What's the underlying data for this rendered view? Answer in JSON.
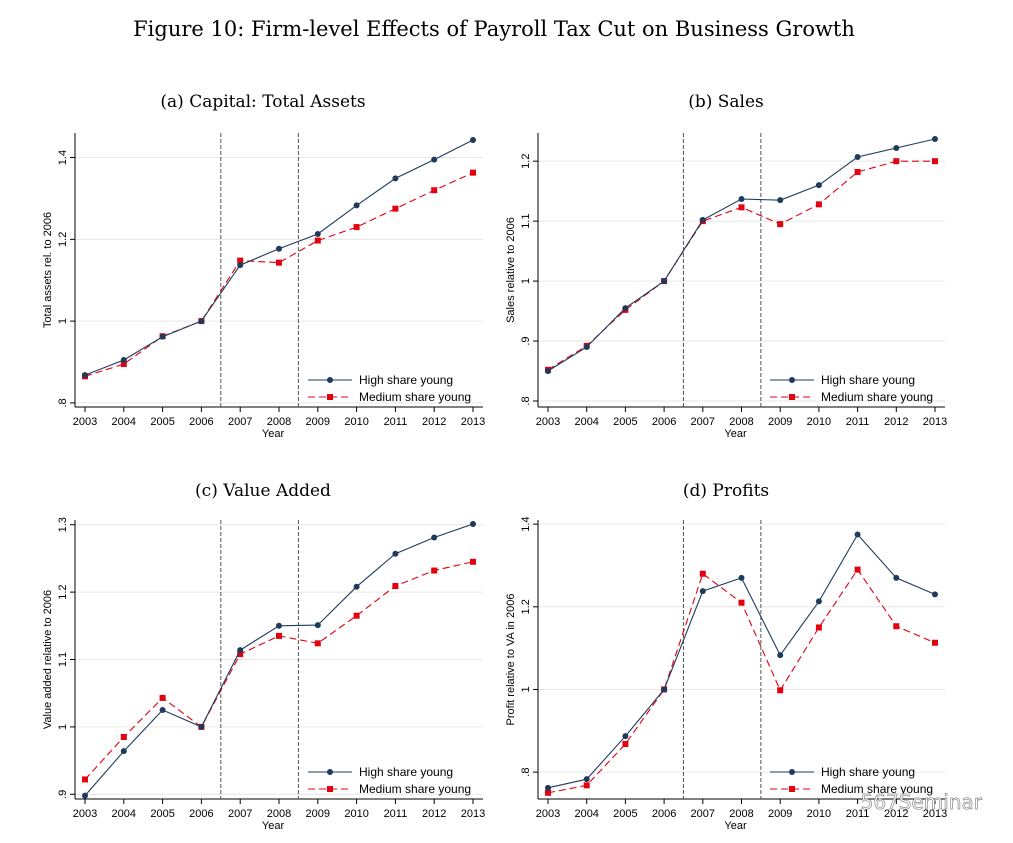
{
  "figure": {
    "title": "Figure 10: Firm-level Effects of Payroll Tax Cut on Business Growth",
    "watermark": "567Seminar"
  },
  "colors": {
    "high": "#1f3b5c",
    "medium": "#e3000f",
    "grid": "#e6e6e6",
    "vline": "#555555"
  },
  "chart_data": [
    {
      "type": "line",
      "title": "(a) Capital: Total Assets",
      "xlabel": "Year",
      "ylabel": "Total assets rel. to 2006",
      "x": [
        2003,
        2004,
        2005,
        2006,
        2007,
        2008,
        2009,
        2010,
        2011,
        2012,
        2013
      ],
      "x_ticks": [
        "2003",
        "2004",
        "2005",
        "2006",
        "2007",
        "2008",
        "2009",
        "2010",
        "2011",
        "2012",
        "2013"
      ],
      "ylim": [
        0.79,
        1.46
      ],
      "y_ticks": [
        0.8,
        1.0,
        1.2,
        1.4
      ],
      "y_tick_labels": [
        ".8",
        "1",
        "1.2",
        "1.4"
      ],
      "vlines": [
        2006.5,
        2008.5
      ],
      "legend_position": "bottom-right",
      "series": [
        {
          "name": "High share young",
          "values": [
            0.868,
            0.905,
            0.962,
            1.0,
            1.137,
            1.177,
            1.213,
            1.283,
            1.349,
            1.395,
            1.443
          ]
        },
        {
          "name": "Medium share young",
          "values": [
            0.865,
            0.895,
            0.963,
            1.0,
            1.148,
            1.143,
            1.197,
            1.23,
            1.275,
            1.32,
            1.363
          ]
        }
      ]
    },
    {
      "type": "line",
      "title": "(b) Sales",
      "xlabel": "Year",
      "ylabel": "Sales relative to 2006",
      "x": [
        2003,
        2004,
        2005,
        2006,
        2007,
        2008,
        2009,
        2010,
        2011,
        2012,
        2013
      ],
      "x_ticks": [
        "2003",
        "2004",
        "2005",
        "2006",
        "2007",
        "2008",
        "2009",
        "2010",
        "2011",
        "2012",
        "2013"
      ],
      "ylim": [
        0.79,
        1.247
      ],
      "y_ticks": [
        0.8,
        0.9,
        1.0,
        1.1,
        1.2
      ],
      "y_tick_labels": [
        ".8",
        ".9",
        "1",
        "1.1",
        "1.2"
      ],
      "vlines": [
        2006.5,
        2008.5
      ],
      "legend_position": "bottom-right",
      "series": [
        {
          "name": "High share young",
          "values": [
            0.85,
            0.89,
            0.955,
            1.0,
            1.102,
            1.137,
            1.135,
            1.16,
            1.207,
            1.222,
            1.237
          ]
        },
        {
          "name": "Medium share young",
          "values": [
            0.852,
            0.892,
            0.952,
            1.0,
            1.1,
            1.123,
            1.095,
            1.128,
            1.182,
            1.2,
            1.2
          ]
        }
      ]
    },
    {
      "type": "line",
      "title": "(c) Value Added",
      "xlabel": "Year",
      "ylabel": "Value added relative to 2006",
      "x": [
        2003,
        2004,
        2005,
        2006,
        2007,
        2008,
        2009,
        2010,
        2011,
        2012,
        2013
      ],
      "x_ticks": [
        "2003",
        "2004",
        "2005",
        "2006",
        "2007",
        "2008",
        "2009",
        "2010",
        "2011",
        "2012",
        "2013"
      ],
      "ylim": [
        0.893,
        1.307
      ],
      "y_ticks": [
        0.9,
        1.0,
        1.1,
        1.2,
        1.3
      ],
      "y_tick_labels": [
        ".9",
        "1",
        "1.1",
        "1.2",
        "1.3"
      ],
      "vlines": [
        2006.5,
        2008.5
      ],
      "legend_position": "bottom-right",
      "series": [
        {
          "name": "High share young",
          "values": [
            0.898,
            0.964,
            1.025,
            1.0,
            1.114,
            1.15,
            1.151,
            1.208,
            1.257,
            1.281,
            1.301
          ]
        },
        {
          "name": "Medium share young",
          "values": [
            0.922,
            0.985,
            1.043,
            1.0,
            1.108,
            1.135,
            1.124,
            1.165,
            1.209,
            1.232,
            1.245
          ]
        }
      ]
    },
    {
      "type": "line",
      "title": "(d) Profits",
      "xlabel": "Year",
      "ylabel": "Profit relative to VA in 2006",
      "x": [
        2003,
        2004,
        2005,
        2006,
        2007,
        2008,
        2009,
        2010,
        2011,
        2012,
        2013
      ],
      "x_ticks": [
        "2003",
        "2004",
        "2005",
        "2006",
        "2007",
        "2008",
        "2009",
        "2010",
        "2011",
        "2012",
        "2013"
      ],
      "ylim": [
        0.735,
        1.41
      ],
      "y_ticks": [
        0.8,
        1.0,
        1.2,
        1.4
      ],
      "y_tick_labels": [
        ".8",
        "1",
        "1.2",
        "1.4"
      ],
      "vlines": [
        2006.5,
        2008.5
      ],
      "legend_position": "bottom-right",
      "series": [
        {
          "name": "High share young",
          "values": [
            0.762,
            0.783,
            0.887,
            1.0,
            1.238,
            1.27,
            1.083,
            1.213,
            1.375,
            1.27,
            1.23
          ]
        },
        {
          "name": "Medium share young",
          "values": [
            0.75,
            0.768,
            0.868,
            1.0,
            1.28,
            1.21,
            0.998,
            1.15,
            1.29,
            1.153,
            1.113
          ]
        }
      ]
    }
  ]
}
